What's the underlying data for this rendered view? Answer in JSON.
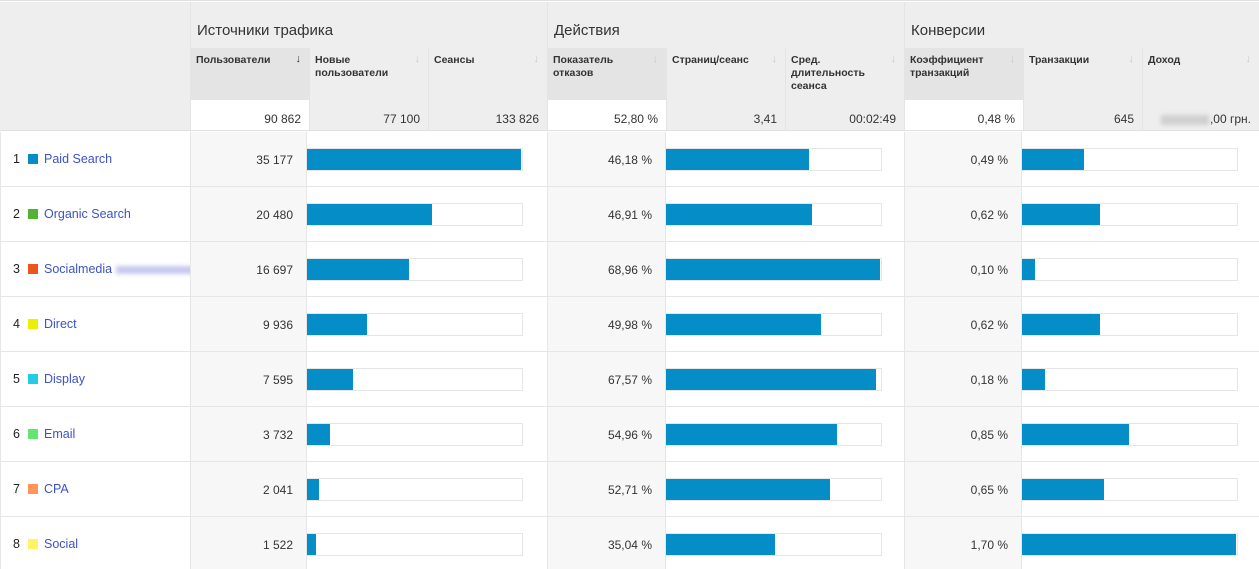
{
  "groups": [
    {
      "label": "Источники трафика"
    },
    {
      "label": "Действия"
    },
    {
      "label": "Конверсии"
    }
  ],
  "columns": [
    {
      "label": "Пользователи",
      "sorted": true,
      "sort_icon": "arrow-down-icon"
    },
    {
      "label": "Новые пользователи",
      "sorted": false,
      "sort_icon": "arrow-down-icon"
    },
    {
      "label": "Сеансы",
      "sorted": false,
      "sort_icon": "arrow-down-icon"
    },
    {
      "label": "Показатель отказов",
      "sorted": false,
      "sort_icon": "arrow-down-icon"
    },
    {
      "label": "Страниц/сеанс",
      "sorted": false,
      "sort_icon": "arrow-down-icon"
    },
    {
      "label": "Сред. длительность сеанса",
      "sorted": false,
      "sort_icon": "arrow-down-icon"
    },
    {
      "label": "Коэффициент транзакций",
      "sorted": false,
      "sort_icon": "arrow-down-icon"
    },
    {
      "label": "Транзакции",
      "sorted": false,
      "sort_icon": "arrow-down-icon"
    },
    {
      "label": "Доход",
      "sorted": false,
      "sort_icon": "arrow-down-icon"
    }
  ],
  "totals": {
    "users": "90 862",
    "new_users": "77 100",
    "sessions": "133 826",
    "bounce_rate": "52,80 %",
    "pages_per_session": "3,41",
    "avg_duration": "00:02:49",
    "conversion_rate": "0,48 %",
    "transactions": "645",
    "revenue_suffix": ",00 грн."
  },
  "bar_color": "#058dc7",
  "rows": [
    {
      "index": "1",
      "channel": "Paid Search",
      "color": "#058dc7",
      "users": "35 177",
      "users_num": 35177,
      "bounce": "46,18 %",
      "bounce_num": 46.18,
      "conv": "0,49 %",
      "conv_num": 0.49
    },
    {
      "index": "2",
      "channel": "Organic Search",
      "color": "#50b432",
      "users": "20 480",
      "users_num": 20480,
      "bounce": "46,91 %",
      "bounce_num": 46.91,
      "conv": "0,62 %",
      "conv_num": 0.62
    },
    {
      "index": "3",
      "channel": "Socialmedia",
      "color": "#ed561b",
      "users": "16 697",
      "users_num": 16697,
      "bounce": "68,96 %",
      "bounce_num": 68.96,
      "conv": "0,10 %",
      "conv_num": 0.1,
      "redacted": true
    },
    {
      "index": "4",
      "channel": "Direct",
      "color": "#edef00",
      "users": "9 936",
      "users_num": 9936,
      "bounce": "49,98 %",
      "bounce_num": 49.98,
      "conv": "0,62 %",
      "conv_num": 0.62
    },
    {
      "index": "5",
      "channel": "Display",
      "color": "#24cbe5",
      "users": "7 595",
      "users_num": 7595,
      "bounce": "67,57 %",
      "bounce_num": 67.57,
      "conv": "0,18 %",
      "conv_num": 0.18
    },
    {
      "index": "6",
      "channel": "Email",
      "color": "#64e572",
      "users": "3 732",
      "users_num": 3732,
      "bounce": "54,96 %",
      "bounce_num": 54.96,
      "conv": "0,85 %",
      "conv_num": 0.85
    },
    {
      "index": "7",
      "channel": "CPA",
      "color": "#ff9655",
      "users": "2 041",
      "users_num": 2041,
      "bounce": "52,71 %",
      "bounce_num": 52.71,
      "conv": "0,65 %",
      "conv_num": 0.65
    },
    {
      "index": "8",
      "channel": "Social",
      "color": "#fff263",
      "users": "1 522",
      "users_num": 1522,
      "bounce": "35,04 %",
      "bounce_num": 35.04,
      "conv": "1,70 %",
      "conv_num": 1.7
    }
  ]
}
